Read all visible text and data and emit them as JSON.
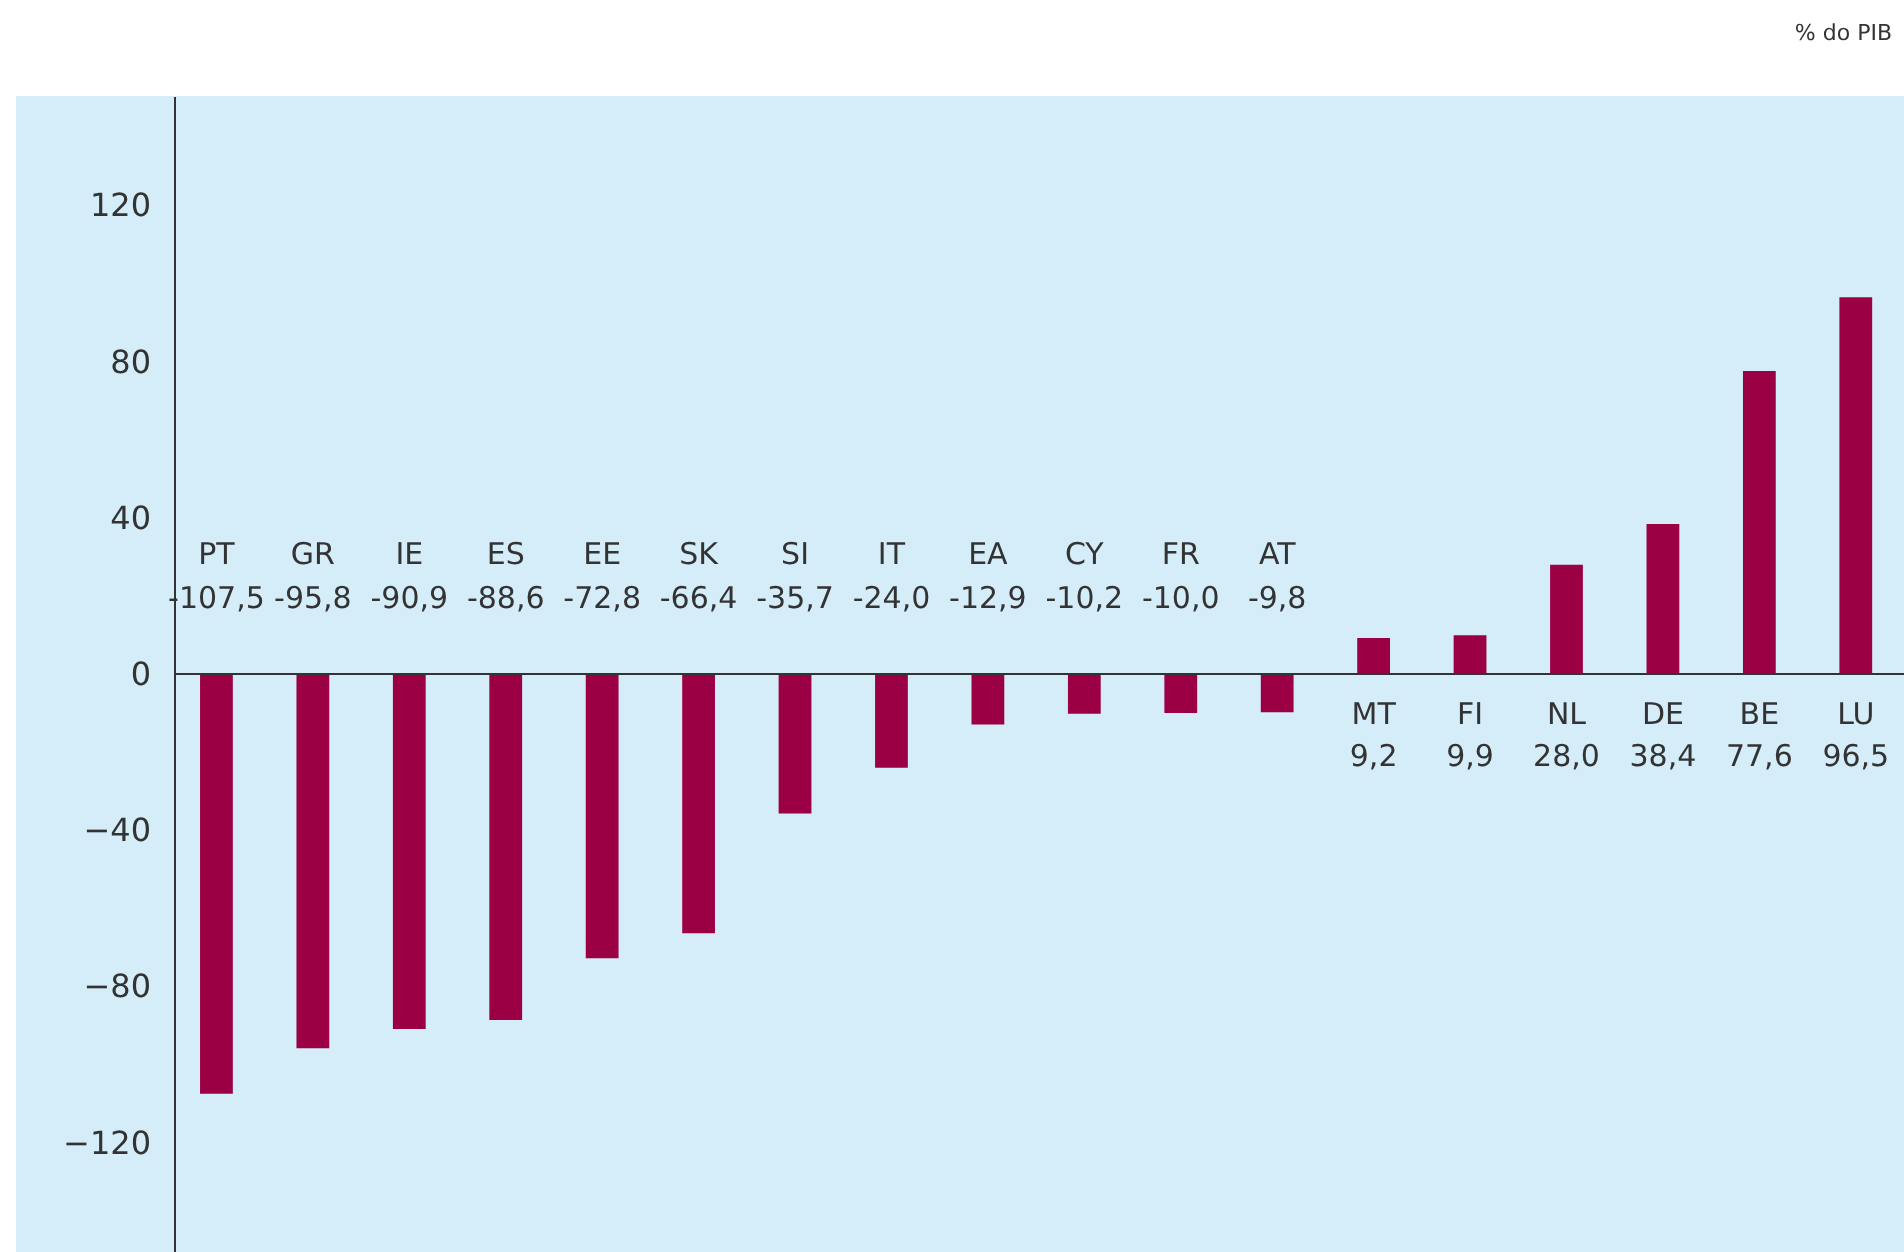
{
  "chart_data": {
    "type": "bar",
    "categories": [
      "PT",
      "GR",
      "IE",
      "ES",
      "EE",
      "SK",
      "SI",
      "IT",
      "EA",
      "CY",
      "FR",
      "AT",
      "MT",
      "FI",
      "NL",
      "DE",
      "BE",
      "LU"
    ],
    "values": [
      -107.5,
      -95.8,
      -90.9,
      -88.6,
      -72.8,
      -66.4,
      -35.7,
      -24.0,
      -12.9,
      -10.2,
      -10.0,
      -9.8,
      9.2,
      9.9,
      28.0,
      38.4,
      77.6,
      96.5
    ],
    "value_labels": [
      "-107,5",
      "-95,8",
      "-90,9",
      "-88,6",
      "-72,8",
      "-66,4",
      "-35,7",
      "-24,0",
      "-12,9",
      "-10,2",
      "-10,0",
      "-9,8",
      "9,2",
      "9,9",
      "28,0",
      "38,4",
      "77,6",
      "96,5"
    ],
    "color": "#9b0045",
    "ylim": [
      -148,
      148
    ],
    "yticks": [
      -120,
      -80,
      -40,
      0,
      40,
      80,
      120
    ],
    "ref_lines": [
      {
        "axis": "y",
        "value": 0,
        "color": "#333333"
      }
    ],
    "tick_labels": "y",
    "grid": false,
    "annotations": [
      "% do PIB"
    ]
  }
}
